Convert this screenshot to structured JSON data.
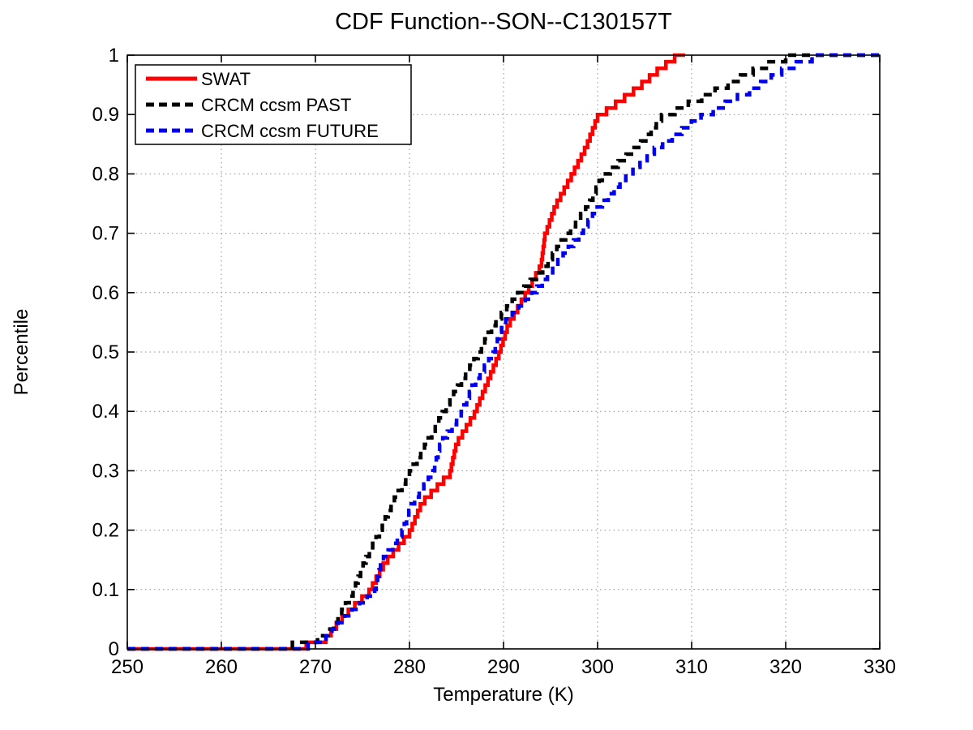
{
  "title": "CDF Function--SON--C130157T",
  "axis": {
    "xlabel": "Temperature (K)",
    "ylabel": "Percentile",
    "x_ticks": [
      "250",
      "260",
      "270",
      "280",
      "290",
      "300",
      "310",
      "320",
      "330"
    ],
    "y_ticks": [
      "0",
      "0.1",
      "0.2",
      "0.3",
      "0.4",
      "0.5",
      "0.6",
      "0.7",
      "0.8",
      "0.9",
      "1"
    ],
    "xlim": [
      250,
      330
    ],
    "ylim": [
      0,
      1
    ]
  },
  "legend": {
    "position": "top-left",
    "items": [
      {
        "label": "SWAT"
      },
      {
        "label": "CRCM ccsm PAST"
      },
      {
        "label": "CRCM ccsm FUTURE"
      }
    ]
  },
  "colors": {
    "background": "#ffffff",
    "axis": "#000000",
    "grid": "#8c8c8c",
    "swat": "#ff0000",
    "crcm_past": "#000000",
    "crcm_future": "#0000ee"
  },
  "chart_data": {
    "type": "line",
    "subtype": "empirical-cdf-steps",
    "title": "CDF Function--SON--C130157T",
    "xlabel": "Temperature (K)",
    "ylabel": "Percentile",
    "xlim": [
      250,
      330
    ],
    "ylim": [
      0,
      1
    ],
    "grid": "dotted",
    "legend_position": "top-left",
    "n_steps": 90,
    "series": [
      {
        "name": "SWAT",
        "color": "#ff0000",
        "style": "solid",
        "line_end_x": 309.3,
        "quantiles": [
          [
            250,
            0
          ],
          [
            258,
            0.001
          ],
          [
            263,
            0.003
          ],
          [
            266,
            0.006
          ],
          [
            269,
            0.011
          ],
          [
            271,
            0.02
          ],
          [
            272.5,
            0.05
          ],
          [
            274,
            0.075
          ],
          [
            275.7,
            0.1
          ],
          [
            277.4,
            0.15
          ],
          [
            280,
            0.2
          ],
          [
            281.3,
            0.25
          ],
          [
            284.3,
            0.3
          ],
          [
            285,
            0.35
          ],
          [
            286.9,
            0.4
          ],
          [
            288.2,
            0.45
          ],
          [
            289.5,
            0.5
          ],
          [
            290.5,
            0.55
          ],
          [
            292.3,
            0.6
          ],
          [
            294,
            0.65
          ],
          [
            294.4,
            0.7
          ],
          [
            295.5,
            0.75
          ],
          [
            297.2,
            0.8
          ],
          [
            298.8,
            0.85
          ],
          [
            300,
            0.9
          ],
          [
            304.3,
            0.95
          ],
          [
            306.5,
            0.98
          ],
          [
            308.2,
            1
          ]
        ]
      },
      {
        "name": "CRCM ccsm PAST",
        "color": "#000000",
        "style": "dashed",
        "line_end_x": 330,
        "quantiles": [
          [
            250,
            0
          ],
          [
            257,
            0.001
          ],
          [
            262,
            0.003
          ],
          [
            265,
            0.006
          ],
          [
            268,
            0.012
          ],
          [
            270,
            0.02
          ],
          [
            271.5,
            0.035
          ],
          [
            272.2,
            0.05
          ],
          [
            274,
            0.1
          ],
          [
            275.2,
            0.15
          ],
          [
            276.8,
            0.2
          ],
          [
            278.2,
            0.25
          ],
          [
            280,
            0.3
          ],
          [
            281.8,
            0.35
          ],
          [
            283.5,
            0.4
          ],
          [
            285.3,
            0.45
          ],
          [
            287.3,
            0.5
          ],
          [
            288.9,
            0.55
          ],
          [
            291.5,
            0.6
          ],
          [
            294.5,
            0.65
          ],
          [
            296.6,
            0.7
          ],
          [
            299,
            0.75
          ],
          [
            300.5,
            0.8
          ],
          [
            304.3,
            0.85
          ],
          [
            306.8,
            0.9
          ],
          [
            313.2,
            0.95
          ],
          [
            316.8,
            0.98
          ],
          [
            320,
            1
          ]
        ]
      },
      {
        "name": "CRCM ccsm FUTURE",
        "color": "#0000ee",
        "style": "dashed",
        "line_end_x": 330,
        "quantiles": [
          [
            250,
            0
          ],
          [
            259,
            0.001
          ],
          [
            264,
            0.003
          ],
          [
            267,
            0.006
          ],
          [
            269,
            0.01
          ],
          [
            271,
            0.02
          ],
          [
            272.7,
            0.05
          ],
          [
            274.5,
            0.075
          ],
          [
            276.3,
            0.1
          ],
          [
            277,
            0.15
          ],
          [
            279.2,
            0.2
          ],
          [
            280.3,
            0.25
          ],
          [
            282.5,
            0.3
          ],
          [
            283.3,
            0.35
          ],
          [
            285.5,
            0.4
          ],
          [
            286.8,
            0.45
          ],
          [
            288.9,
            0.5
          ],
          [
            289.9,
            0.55
          ],
          [
            293,
            0.6
          ],
          [
            295.5,
            0.65
          ],
          [
            298,
            0.7
          ],
          [
            300.2,
            0.75
          ],
          [
            303,
            0.8
          ],
          [
            306.4,
            0.85
          ],
          [
            311,
            0.9
          ],
          [
            316.8,
            0.95
          ],
          [
            319.8,
            0.98
          ],
          [
            322.8,
            1
          ]
        ]
      }
    ]
  }
}
